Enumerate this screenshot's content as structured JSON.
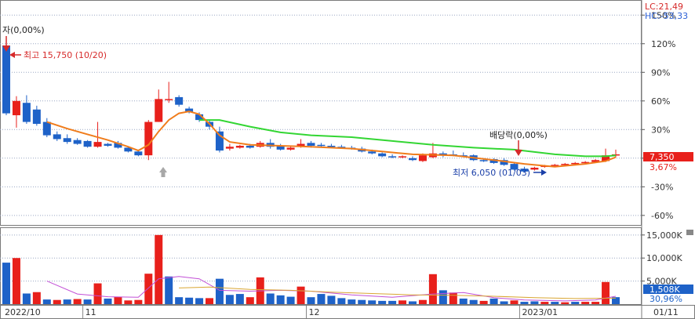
{
  "header": {
    "lc": "LC:21,49",
    "hc": "HC:-53,33"
  },
  "annotations": {
    "rights": "자(0,00%)",
    "high": "최고 15,750 (10/20)",
    "dividend": "배당락(0,00%)",
    "low": "최저 6,050 (01/03)"
  },
  "badges": {
    "price": "7,350",
    "change": "3,67%",
    "volume": "1,508K",
    "volume_pct": "30,96%"
  },
  "x_labels": [
    {
      "label": "2022/10",
      "index": 0
    },
    {
      "label": "11",
      "index": 8
    },
    {
      "label": "12",
      "index": 30
    },
    {
      "label": "2023/01",
      "index": 51
    },
    {
      "label": "01/11",
      "index": 62
    }
  ],
  "colors": {
    "up": "#e8201b",
    "down": "#1e62c8",
    "ma_short": "#f07c1b",
    "ma_long": "#33d633",
    "vol_ma_a": "#c24fd6",
    "vol_ma_b": "#d9a633",
    "header_lc": "#d62a2a",
    "header_hc": "#2a5fd6",
    "grid": "#9aa7c4"
  },
  "chart_data": [
    {
      "type": "candlestick",
      "ylabel": "% change",
      "ylim": [
        -70,
        165
      ],
      "y_ticks": [
        "150%",
        "120%",
        "90%",
        "60%",
        "30%",
        "0%",
        "-30%",
        "-60%"
      ],
      "y_tick_values": [
        150,
        120,
        90,
        60,
        30,
        0,
        -30,
        -60
      ],
      "candles": [
        {
          "o": 118,
          "c": 47,
          "h": 125,
          "l": 45
        },
        {
          "o": 45,
          "c": 60,
          "h": 65,
          "l": 32
        },
        {
          "o": 58,
          "c": 38,
          "h": 66,
          "l": 36
        },
        {
          "o": 51,
          "c": 36,
          "h": 55,
          "l": 34
        },
        {
          "o": 38,
          "c": 24,
          "h": 42,
          "l": 22
        },
        {
          "o": 25,
          "c": 20,
          "h": 28,
          "l": 18
        },
        {
          "o": 21,
          "c": 17,
          "h": 25,
          "l": 15
        },
        {
          "o": 19,
          "c": 15,
          "h": 21,
          "l": 14
        },
        {
          "o": 18,
          "c": 12,
          "h": 19,
          "l": 11
        },
        {
          "o": 12,
          "c": 17,
          "h": 38,
          "l": 11
        },
        {
          "o": 15,
          "c": 13,
          "h": 16,
          "l": 12
        },
        {
          "o": 16,
          "c": 11,
          "h": 18,
          "l": 10
        },
        {
          "o": 11,
          "c": 7,
          "h": 12,
          "l": 6
        },
        {
          "o": 7,
          "c": 3,
          "h": 9,
          "l": 2
        },
        {
          "o": 3,
          "c": 38,
          "h": 40,
          "l": -2
        },
        {
          "o": 38,
          "c": 62,
          "h": 72,
          "l": 38
        },
        {
          "o": 62,
          "c": 62,
          "h": 80,
          "l": 58
        },
        {
          "o": 64,
          "c": 56,
          "h": 66,
          "l": 54
        },
        {
          "o": 52,
          "c": 48,
          "h": 54,
          "l": 47
        },
        {
          "o": 46,
          "c": 40,
          "h": 48,
          "l": 38
        },
        {
          "o": 38,
          "c": 33,
          "h": 40,
          "l": 30
        },
        {
          "o": 28,
          "c": 8,
          "h": 33,
          "l": 6
        },
        {
          "o": 10,
          "c": 12,
          "h": 15,
          "l": 8
        },
        {
          "o": 11,
          "c": 13,
          "h": 14,
          "l": 10
        },
        {
          "o": 13,
          "c": 11,
          "h": 15,
          "l": 10
        },
        {
          "o": 12,
          "c": 16,
          "h": 18,
          "l": 11
        },
        {
          "o": 16,
          "c": 12,
          "h": 20,
          "l": 10
        },
        {
          "o": 13,
          "c": 9,
          "h": 15,
          "l": 8
        },
        {
          "o": 9,
          "c": 11,
          "h": 13,
          "l": 8
        },
        {
          "o": 12,
          "c": 15,
          "h": 20,
          "l": 11
        },
        {
          "o": 16,
          "c": 13,
          "h": 18,
          "l": 11
        },
        {
          "o": 14,
          "c": 13,
          "h": 16,
          "l": 12
        },
        {
          "o": 13,
          "c": 12,
          "h": 15,
          "l": 11
        },
        {
          "o": 12,
          "c": 11,
          "h": 14,
          "l": 10
        },
        {
          "o": 11,
          "c": 10,
          "h": 13,
          "l": 9
        },
        {
          "o": 10,
          "c": 7,
          "h": 12,
          "l": 6
        },
        {
          "o": 7,
          "c": 5,
          "h": 9,
          "l": 4
        },
        {
          "o": 5,
          "c": 2,
          "h": 6,
          "l": 1
        },
        {
          "o": 2,
          "c": 1,
          "h": 4,
          "l": 0
        },
        {
          "o": 1,
          "c": 2,
          "h": 3,
          "l": 0
        },
        {
          "o": 0,
          "c": -2,
          "h": 2,
          "l": -3
        },
        {
          "o": -3,
          "c": 3,
          "h": 5,
          "l": -4
        },
        {
          "o": 1,
          "c": 5,
          "h": 16,
          "l": 0
        },
        {
          "o": 5,
          "c": 3,
          "h": 7,
          "l": 1
        },
        {
          "o": 4,
          "c": 3,
          "h": 8,
          "l": 2
        },
        {
          "o": 3,
          "c": 2,
          "h": 6,
          "l": 1
        },
        {
          "o": 3,
          "c": -2,
          "h": 4,
          "l": -3
        },
        {
          "o": -2,
          "c": -3,
          "h": 0,
          "l": -4
        },
        {
          "o": -1,
          "c": -5,
          "h": 0,
          "l": -6
        },
        {
          "o": -2,
          "c": -7,
          "h": 0,
          "l": -8
        },
        {
          "o": -6,
          "c": -12,
          "h": -5,
          "l": -13
        },
        {
          "o": -11,
          "c": -14,
          "h": -9,
          "l": -15
        },
        {
          "o": -12,
          "c": -10,
          "h": -9,
          "l": -13
        },
        {
          "o": -9,
          "c": -8,
          "h": -7,
          "l": -10
        },
        {
          "o": -8,
          "c": -7,
          "h": -6,
          "l": -9
        },
        {
          "o": -7,
          "c": -6,
          "h": -5,
          "l": -8
        },
        {
          "o": -6,
          "c": -5,
          "h": -4,
          "l": -7
        },
        {
          "o": -5,
          "c": -4,
          "h": -3,
          "l": -6
        },
        {
          "o": -4,
          "c": -2,
          "h": -1,
          "l": -5
        },
        {
          "o": -3,
          "c": 3,
          "h": 10,
          "l": -4
        },
        {
          "o": 3,
          "c": 4,
          "h": 9,
          "l": 1
        }
      ],
      "ma_short": [
        {
          "i": 4,
          "v": 38
        },
        {
          "i": 6,
          "v": 31
        },
        {
          "i": 8,
          "v": 25
        },
        {
          "i": 10,
          "v": 19
        },
        {
          "i": 12,
          "v": 12
        },
        {
          "i": 13,
          "v": 8
        },
        {
          "i": 14,
          "v": 14
        },
        {
          "i": 15,
          "v": 28
        },
        {
          "i": 16,
          "v": 40
        },
        {
          "i": 17,
          "v": 47
        },
        {
          "i": 18,
          "v": 49
        },
        {
          "i": 19,
          "v": 46
        },
        {
          "i": 20,
          "v": 36
        },
        {
          "i": 21,
          "v": 24
        },
        {
          "i": 22,
          "v": 17
        },
        {
          "i": 24,
          "v": 14
        },
        {
          "i": 27,
          "v": 13
        },
        {
          "i": 30,
          "v": 12
        },
        {
          "i": 34,
          "v": 10
        },
        {
          "i": 37,
          "v": 7
        },
        {
          "i": 40,
          "v": 4
        },
        {
          "i": 44,
          "v": 3
        },
        {
          "i": 48,
          "v": -2
        },
        {
          "i": 51,
          "v": -6
        },
        {
          "i": 54,
          "v": -9
        },
        {
          "i": 57,
          "v": -6
        },
        {
          "i": 59,
          "v": -3
        },
        {
          "i": 60,
          "v": 1
        }
      ],
      "ma_long": [
        {
          "i": 19,
          "v": 40
        },
        {
          "i": 21,
          "v": 40
        },
        {
          "i": 24,
          "v": 33
        },
        {
          "i": 27,
          "v": 27
        },
        {
          "i": 30,
          "v": 24
        },
        {
          "i": 34,
          "v": 22
        },
        {
          "i": 38,
          "v": 18
        },
        {
          "i": 42,
          "v": 14
        },
        {
          "i": 46,
          "v": 11
        },
        {
          "i": 50,
          "v": 9
        },
        {
          "i": 54,
          "v": 4
        },
        {
          "i": 57,
          "v": 2
        },
        {
          "i": 59,
          "v": 2
        },
        {
          "i": 60,
          "v": 3
        }
      ]
    },
    {
      "type": "bar",
      "ylabel": "Volume",
      "y_ticks": [
        "15,000K",
        "10,000K",
        "5,000K"
      ],
      "y_tick_values": [
        15000,
        10000,
        5000
      ],
      "ylim": [
        0,
        16500
      ],
      "values": [
        9000,
        10000,
        2300,
        2600,
        1000,
        900,
        1000,
        1100,
        1000,
        4500,
        1200,
        1600,
        800,
        900,
        6600,
        15000,
        6000,
        1500,
        1400,
        1300,
        1300,
        5500,
        2000,
        2200,
        1500,
        5800,
        2300,
        1900,
        1600,
        3800,
        1500,
        2200,
        1800,
        1300,
        1000,
        900,
        800,
        700,
        700,
        800,
        600,
        900,
        6500,
        3000,
        2500,
        1200,
        900,
        700,
        1200,
        600,
        800,
        500,
        600,
        500,
        500,
        400,
        500,
        500,
        500,
        4800,
        1508
      ],
      "up": [
        false,
        true,
        false,
        true,
        false,
        true,
        false,
        true,
        false,
        true,
        false,
        true,
        true,
        true,
        true,
        true,
        false,
        false,
        false,
        false,
        true,
        false,
        false,
        false,
        true,
        true,
        false,
        false,
        false,
        true,
        false,
        false,
        false,
        false,
        false,
        false,
        false,
        false,
        false,
        true,
        false,
        true,
        true,
        false,
        true,
        false,
        false,
        true,
        false,
        false,
        true,
        false,
        false,
        true,
        false,
        true,
        false,
        true,
        true,
        true,
        false
      ],
      "ma_a": [
        {
          "i": 4,
          "v": 5000
        },
        {
          "i": 7,
          "v": 2200
        },
        {
          "i": 10,
          "v": 1600
        },
        {
          "i": 13,
          "v": 1500
        },
        {
          "i": 15,
          "v": 5500
        },
        {
          "i": 17,
          "v": 6000
        },
        {
          "i": 19,
          "v": 5500
        },
        {
          "i": 21,
          "v": 3000
        },
        {
          "i": 24,
          "v": 2800
        },
        {
          "i": 27,
          "v": 3000
        },
        {
          "i": 30,
          "v": 2800
        },
        {
          "i": 34,
          "v": 2000
        },
        {
          "i": 38,
          "v": 1500
        },
        {
          "i": 42,
          "v": 2200
        },
        {
          "i": 45,
          "v": 2500
        },
        {
          "i": 48,
          "v": 1400
        },
        {
          "i": 51,
          "v": 900
        },
        {
          "i": 55,
          "v": 700
        },
        {
          "i": 58,
          "v": 900
        },
        {
          "i": 60,
          "v": 1700
        }
      ],
      "ma_b": [
        {
          "i": 17,
          "v": 3500
        },
        {
          "i": 20,
          "v": 3700
        },
        {
          "i": 24,
          "v": 3200
        },
        {
          "i": 28,
          "v": 3000
        },
        {
          "i": 32,
          "v": 2600
        },
        {
          "i": 36,
          "v": 2300
        },
        {
          "i": 40,
          "v": 2000
        },
        {
          "i": 44,
          "v": 1900
        },
        {
          "i": 48,
          "v": 1700
        },
        {
          "i": 52,
          "v": 1400
        },
        {
          "i": 56,
          "v": 1200
        },
        {
          "i": 60,
          "v": 1300
        }
      ]
    }
  ]
}
